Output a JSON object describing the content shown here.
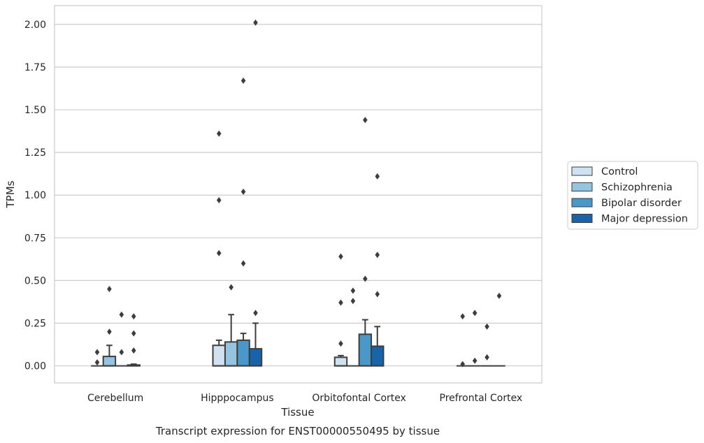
{
  "chart_data": {
    "type": "box",
    "caption": "Transcript expression for ENST00000550495 by tissue",
    "xlabel": "Tissue",
    "ylabel": "TPMs",
    "ylim": [
      -0.1,
      2.11
    ],
    "yticks": [
      0.0,
      0.25,
      0.5,
      0.75,
      1.0,
      1.25,
      1.5,
      1.75,
      2.0
    ],
    "ytick_labels": [
      "0.00",
      "0.25",
      "0.50",
      "0.75",
      "1.00",
      "1.25",
      "1.50",
      "1.75",
      "2.00"
    ],
    "categories": [
      "Cerebellum",
      "Hipppocampus",
      "Orbitofontal Cortex",
      "Prefrontal Cortex"
    ],
    "grid": "horizontal",
    "legend_position": "right",
    "series": [
      {
        "name": "Control",
        "color": "#d0e1f2",
        "boxes": [
          {
            "q1": 0.0,
            "median": 0.0,
            "q3": 0.0,
            "whisker_low": 0.0,
            "whisker_high": 0.0,
            "outliers": [
              0.02,
              0.08
            ]
          },
          {
            "q1": 0.0,
            "median": 0.0,
            "q3": 0.12,
            "whisker_low": 0.0,
            "whisker_high": 0.15,
            "outliers": [
              0.66,
              0.97,
              1.36
            ]
          },
          {
            "q1": 0.0,
            "median": 0.0,
            "q3": 0.05,
            "whisker_low": 0.0,
            "whisker_high": 0.06,
            "outliers": [
              0.13,
              0.37,
              0.64
            ]
          },
          {
            "q1": 0.0,
            "median": 0.0,
            "q3": 0.0,
            "whisker_low": 0.0,
            "whisker_high": 0.0,
            "outliers": [
              0.01,
              0.29
            ]
          }
        ]
      },
      {
        "name": "Schizophrenia",
        "color": "#94c4df",
        "boxes": [
          {
            "q1": 0.0,
            "median": 0.0,
            "q3": 0.055,
            "whisker_low": 0.0,
            "whisker_high": 0.12,
            "outliers": [
              0.2,
              0.45
            ]
          },
          {
            "q1": 0.0,
            "median": 0.0,
            "q3": 0.14,
            "whisker_low": 0.0,
            "whisker_high": 0.3,
            "outliers": [
              0.46
            ]
          },
          {
            "q1": 0.0,
            "median": 0.0,
            "q3": 0.0,
            "whisker_low": 0.0,
            "whisker_high": 0.0,
            "outliers": [
              0.38,
              0.44
            ]
          },
          {
            "q1": 0.0,
            "median": 0.0,
            "q3": 0.0,
            "whisker_low": 0.0,
            "whisker_high": 0.0,
            "outliers": [
              0.03,
              0.31
            ]
          }
        ]
      },
      {
        "name": "Bipolar disorder",
        "color": "#4a98c9",
        "boxes": [
          {
            "q1": 0.0,
            "median": 0.0,
            "q3": 0.0,
            "whisker_low": 0.0,
            "whisker_high": 0.0,
            "outliers": [
              0.08,
              0.3
            ]
          },
          {
            "q1": 0.0,
            "median": 0.0,
            "q3": 0.15,
            "whisker_low": 0.0,
            "whisker_high": 0.19,
            "outliers": [
              0.6,
              1.02,
              1.67
            ]
          },
          {
            "q1": 0.0,
            "median": 0.0,
            "q3": 0.185,
            "whisker_low": 0.0,
            "whisker_high": 0.27,
            "outliers": [
              0.51,
              1.44
            ]
          },
          {
            "q1": 0.0,
            "median": 0.0,
            "q3": 0.0,
            "whisker_low": 0.0,
            "whisker_high": 0.0,
            "outliers": [
              0.05,
              0.23
            ]
          }
        ]
      },
      {
        "name": "Major depression",
        "color": "#1764ab",
        "boxes": [
          {
            "q1": 0.0,
            "median": 0.0,
            "q3": 0.005,
            "whisker_low": 0.0,
            "whisker_high": 0.01,
            "outliers": [
              0.09,
              0.19,
              0.29
            ]
          },
          {
            "q1": 0.0,
            "median": 0.0,
            "q3": 0.1,
            "whisker_low": 0.0,
            "whisker_high": 0.25,
            "outliers": [
              0.31,
              2.01
            ]
          },
          {
            "q1": 0.0,
            "median": 0.0,
            "q3": 0.115,
            "whisker_low": 0.0,
            "whisker_high": 0.23,
            "outliers": [
              0.42,
              0.65,
              1.11
            ]
          },
          {
            "q1": 0.0,
            "median": 0.0,
            "q3": 0.0,
            "whisker_low": 0.0,
            "whisker_high": 0.0,
            "outliers": [
              0.41
            ]
          }
        ]
      }
    ]
  }
}
